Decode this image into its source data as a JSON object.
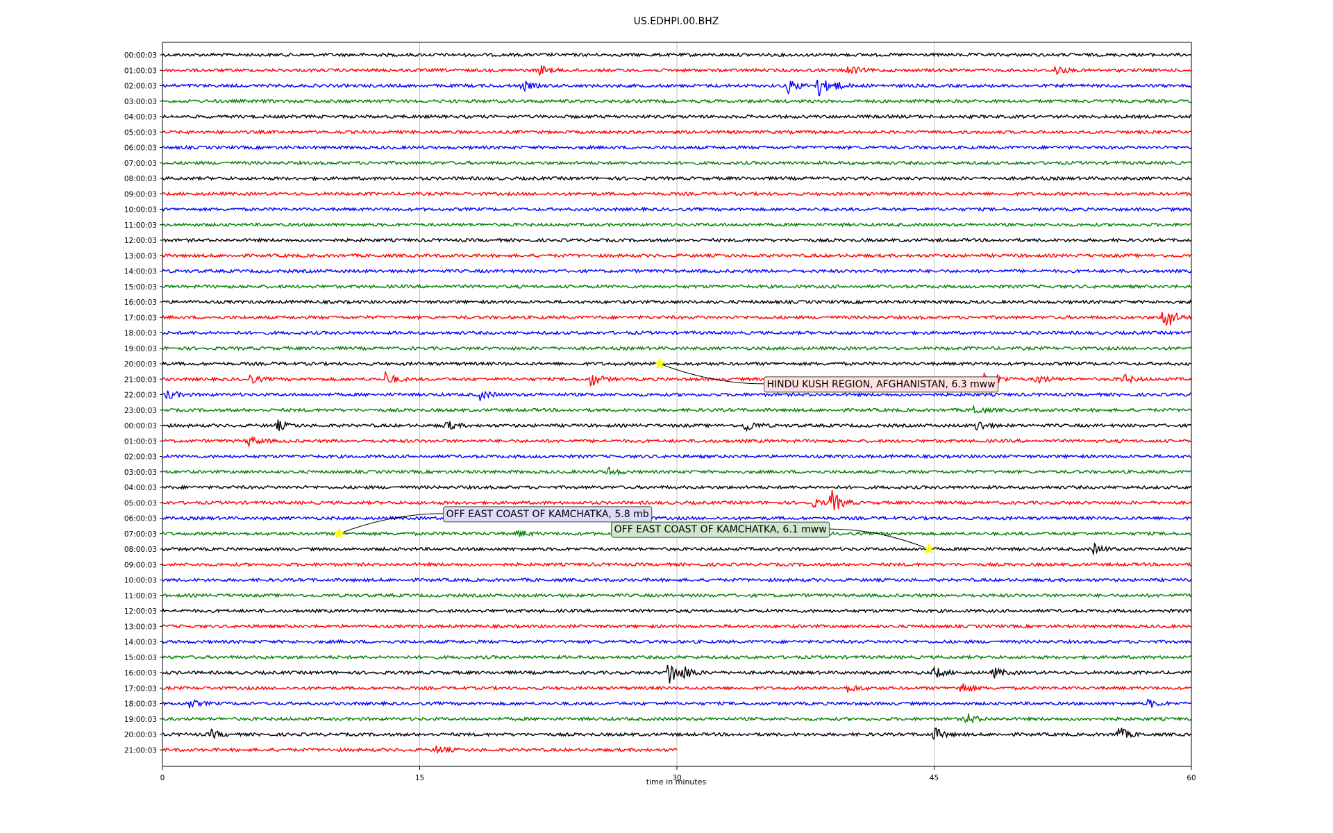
{
  "chart_data": {
    "type": "line",
    "title": "US.EDHPI.00.BHZ",
    "xlabel": "time in minutes",
    "xlim": [
      0,
      60
    ],
    "xticks": [
      0,
      15,
      30,
      45,
      60
    ],
    "grid": "vertical",
    "trace_colors": [
      "#000000",
      "#ff0000",
      "#0000ff",
      "#008000"
    ],
    "traces": [
      {
        "label": "00:00:03",
        "duration_min": 60
      },
      {
        "label": "01:00:03",
        "duration_min": 60
      },
      {
        "label": "02:00:03",
        "duration_min": 60
      },
      {
        "label": "03:00:03",
        "duration_min": 60
      },
      {
        "label": "04:00:03",
        "duration_min": 60
      },
      {
        "label": "05:00:03",
        "duration_min": 60
      },
      {
        "label": "06:00:03",
        "duration_min": 60
      },
      {
        "label": "07:00:03",
        "duration_min": 60
      },
      {
        "label": "08:00:03",
        "duration_min": 60
      },
      {
        "label": "09:00:03",
        "duration_min": 60
      },
      {
        "label": "10:00:03",
        "duration_min": 60
      },
      {
        "label": "11:00:03",
        "duration_min": 60
      },
      {
        "label": "12:00:03",
        "duration_min": 60
      },
      {
        "label": "13:00:03",
        "duration_min": 60
      },
      {
        "label": "14:00:03",
        "duration_min": 60
      },
      {
        "label": "15:00:03",
        "duration_min": 60
      },
      {
        "label": "16:00:03",
        "duration_min": 60
      },
      {
        "label": "17:00:03",
        "duration_min": 60
      },
      {
        "label": "18:00:03",
        "duration_min": 60
      },
      {
        "label": "19:00:03",
        "duration_min": 60
      },
      {
        "label": "20:00:03",
        "duration_min": 60
      },
      {
        "label": "21:00:03",
        "duration_min": 60
      },
      {
        "label": "22:00:03",
        "duration_min": 60
      },
      {
        "label": "23:00:03",
        "duration_min": 60
      },
      {
        "label": "00:00:03",
        "duration_min": 60
      },
      {
        "label": "01:00:03",
        "duration_min": 60
      },
      {
        "label": "02:00:03",
        "duration_min": 60
      },
      {
        "label": "03:00:03",
        "duration_min": 60
      },
      {
        "label": "04:00:03",
        "duration_min": 60
      },
      {
        "label": "05:00:03",
        "duration_min": 60
      },
      {
        "label": "06:00:03",
        "duration_min": 60
      },
      {
        "label": "07:00:03",
        "duration_min": 60
      },
      {
        "label": "08:00:03",
        "duration_min": 60
      },
      {
        "label": "09:00:03",
        "duration_min": 60
      },
      {
        "label": "10:00:03",
        "duration_min": 60
      },
      {
        "label": "11:00:03",
        "duration_min": 60
      },
      {
        "label": "12:00:03",
        "duration_min": 60
      },
      {
        "label": "13:00:03",
        "duration_min": 60
      },
      {
        "label": "14:00:03",
        "duration_min": 60
      },
      {
        "label": "15:00:03",
        "duration_min": 60
      },
      {
        "label": "16:00:03",
        "duration_min": 60
      },
      {
        "label": "17:00:03",
        "duration_min": 60
      },
      {
        "label": "18:00:03",
        "duration_min": 60
      },
      {
        "label": "19:00:03",
        "duration_min": 60
      },
      {
        "label": "20:00:03",
        "duration_min": 60
      },
      {
        "label": "21:00:03",
        "duration_min": 30
      }
    ],
    "bursts": [
      {
        "trace": 1,
        "minute": 22,
        "amp": 0.6
      },
      {
        "trace": 1,
        "minute": 40,
        "amp": 0.6
      },
      {
        "trace": 1,
        "minute": 52,
        "amp": 0.6
      },
      {
        "trace": 2,
        "minute": 21,
        "amp": 0.6
      },
      {
        "trace": 2,
        "minute": 36.5,
        "amp": 0.8
      },
      {
        "trace": 2,
        "minute": 38.2,
        "amp": 1.4
      },
      {
        "trace": 2,
        "minute": 39,
        "amp": 0.6
      },
      {
        "trace": 17,
        "minute": 58.4,
        "amp": 2.0
      },
      {
        "trace": 21,
        "minute": 5,
        "amp": 0.6
      },
      {
        "trace": 21,
        "minute": 13,
        "amp": 0.8
      },
      {
        "trace": 21,
        "minute": 25,
        "amp": 0.9
      },
      {
        "trace": 21,
        "minute": 48,
        "amp": 2.2
      },
      {
        "trace": 21,
        "minute": 51,
        "amp": 0.6
      },
      {
        "trace": 21,
        "minute": 56,
        "amp": 0.6
      },
      {
        "trace": 22,
        "minute": 0.3,
        "amp": 0.6
      },
      {
        "trace": 22,
        "minute": 18.5,
        "amp": 0.6
      },
      {
        "trace": 23,
        "minute": 47.3,
        "amp": 0.6
      },
      {
        "trace": 24,
        "minute": 6.7,
        "amp": 0.6
      },
      {
        "trace": 24,
        "minute": 16.5,
        "amp": 0.6
      },
      {
        "trace": 24,
        "minute": 34,
        "amp": 0.8
      },
      {
        "trace": 24,
        "minute": 47.5,
        "amp": 0.7
      },
      {
        "trace": 25,
        "minute": 5,
        "amp": 0.7
      },
      {
        "trace": 27,
        "minute": 26,
        "amp": 0.5
      },
      {
        "trace": 29,
        "minute": 37.8,
        "amp": 0.6
      },
      {
        "trace": 29,
        "minute": 39,
        "amp": 1.5
      },
      {
        "trace": 31,
        "minute": 20.7,
        "amp": 0.4
      },
      {
        "trace": 32,
        "minute": 54.3,
        "amp": 0.6
      },
      {
        "trace": 40,
        "minute": 29.5,
        "amp": 1.8
      },
      {
        "trace": 40,
        "minute": 30.5,
        "amp": 0.6
      },
      {
        "trace": 40,
        "minute": 45,
        "amp": 0.7
      },
      {
        "trace": 40,
        "minute": 48.5,
        "amp": 0.6
      },
      {
        "trace": 41,
        "minute": 46.5,
        "amp": 0.8
      },
      {
        "trace": 41,
        "minute": 40,
        "amp": 0.5
      },
      {
        "trace": 42,
        "minute": 1.5,
        "amp": 0.5
      },
      {
        "trace": 42,
        "minute": 57.5,
        "amp": 0.5
      },
      {
        "trace": 43,
        "minute": 46.9,
        "amp": 0.7
      },
      {
        "trace": 44,
        "minute": 2.8,
        "amp": 0.5
      },
      {
        "trace": 44,
        "minute": 45,
        "amp": 0.8
      },
      {
        "trace": 44,
        "minute": 55.7,
        "amp": 1.0
      },
      {
        "trace": 45,
        "minute": 16,
        "amp": 0.5
      }
    ],
    "events": [
      {
        "trace": 20,
        "minute": 29.0,
        "label": "HINDU KUSH REGION, AFGHANISTAN, 6.3 mww",
        "box_color": "#fde0e0",
        "text_minute": 35.0,
        "text_trace_offset": 1.3
      },
      {
        "trace": 31,
        "minute": 10.3,
        "label": "OFF EAST COAST OF KAMCHATKA, 5.8 mb",
        "box_color": "#dcdcf8",
        "text_minute": 16.3,
        "text_trace_offset": -1.3
      },
      {
        "trace": 32,
        "minute": 44.7,
        "label": "OFF EAST COAST OF KAMCHATKA, 6.1 mww",
        "box_color": "#cfe6cf",
        "text_minute": 26.1,
        "text_trace_offset": -1.3
      }
    ]
  }
}
